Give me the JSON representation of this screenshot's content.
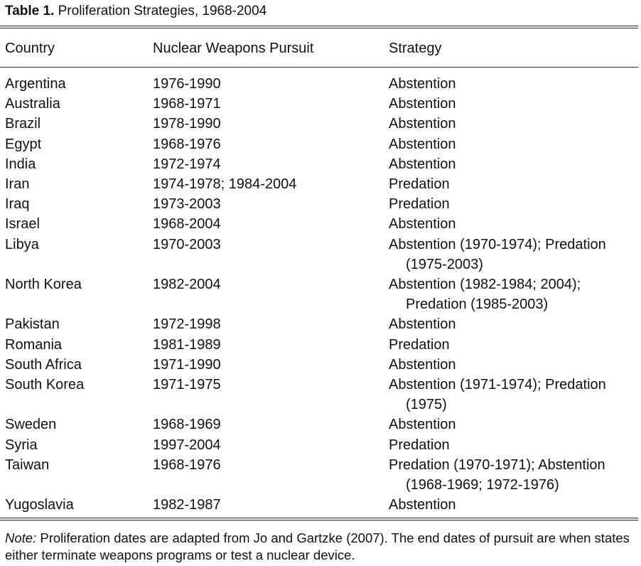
{
  "caption": {
    "label": "Table 1.",
    "title": "Proliferation Strategies, 1968-2004"
  },
  "headers": {
    "country": "Country",
    "pursuit": "Nuclear Weapons Pursuit",
    "strategy": "Strategy"
  },
  "rows": [
    {
      "country": "Argentina",
      "pursuit": "1976-1990",
      "strategy": [
        "Abstention"
      ]
    },
    {
      "country": "Australia",
      "pursuit": "1968-1971",
      "strategy": [
        "Abstention"
      ]
    },
    {
      "country": "Brazil",
      "pursuit": "1978-1990",
      "strategy": [
        "Abstention"
      ]
    },
    {
      "country": "Egypt",
      "pursuit": "1968-1976",
      "strategy": [
        "Abstention"
      ]
    },
    {
      "country": "India",
      "pursuit": "1972-1974",
      "strategy": [
        "Abstention"
      ]
    },
    {
      "country": "Iran",
      "pursuit": "1974-1978; 1984-2004",
      "strategy": [
        "Predation"
      ]
    },
    {
      "country": "Iraq",
      "pursuit": "1973-2003",
      "strategy": [
        "Predation"
      ]
    },
    {
      "country": "Israel",
      "pursuit": "1968-2004",
      "strategy": [
        "Abstention"
      ]
    },
    {
      "country": "Libya",
      "pursuit": "1970-2003",
      "strategy": [
        "Abstention (1970-1974); Predation",
        "(1975-2003)"
      ]
    },
    {
      "country": "North Korea",
      "pursuit": "1982-2004",
      "strategy": [
        "Abstention (1982-1984; 2004);",
        "Predation (1985-2003)"
      ]
    },
    {
      "country": "Pakistan",
      "pursuit": "1972-1998",
      "strategy": [
        "Abstention"
      ]
    },
    {
      "country": "Romania",
      "pursuit": "1981-1989",
      "strategy": [
        "Predation"
      ]
    },
    {
      "country": "South Africa",
      "pursuit": "1971-1990",
      "strategy": [
        "Abstention"
      ]
    },
    {
      "country": "South Korea",
      "pursuit": "1971-1975",
      "strategy": [
        "Abstention (1971-1974); Predation",
        "(1975)"
      ]
    },
    {
      "country": "Sweden",
      "pursuit": "1968-1969",
      "strategy": [
        "Abstention"
      ]
    },
    {
      "country": "Syria",
      "pursuit": "1997-2004",
      "strategy": [
        "Predation"
      ]
    },
    {
      "country": "Taiwan",
      "pursuit": "1968-1976",
      "strategy": [
        "Predation (1970-1971); Abstention",
        "(1968-1969; 1972-1976)"
      ]
    },
    {
      "country": "Yugoslavia",
      "pursuit": "1982-1987",
      "strategy": [
        "Abstention"
      ]
    }
  ],
  "note": {
    "label": "Note:",
    "text": " Proliferation dates are adapted from Jo and Gartzke (2007). The end dates of pursuit are when states either terminate weapons programs or test a nuclear device."
  }
}
